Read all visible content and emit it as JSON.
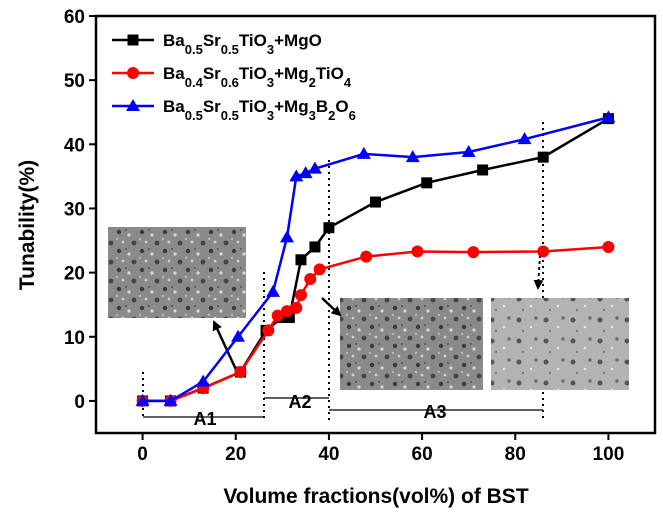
{
  "chart_data": {
    "type": "line",
    "xlabel": "Volume fractions(vol%) of BST",
    "ylabel": "Tunability(%)",
    "xlim": [
      -10,
      110
    ],
    "ylim": [
      -5,
      60
    ],
    "xticks": [
      0,
      20,
      40,
      60,
      80,
      100
    ],
    "yticks": [
      0,
      10,
      20,
      30,
      40,
      50,
      60
    ],
    "legend": "upper left",
    "annotations": [
      "A1",
      "A2",
      "A3"
    ],
    "series": [
      {
        "name": "Ba0.5Sr0.5TiO3+MgO",
        "color": "#000000",
        "marker": "square",
        "x": [
          0,
          6,
          13,
          21,
          26.5,
          30,
          31.5,
          34,
          37,
          40,
          50,
          61,
          73,
          86,
          100
        ],
        "values": [
          0,
          0,
          2,
          4.5,
          11,
          13,
          13,
          22,
          24,
          27,
          31,
          34,
          36,
          38,
          44
        ]
      },
      {
        "name": "Ba0.4Sr0.6TiO3+Mg2TiO4",
        "color": "#ff0000",
        "marker": "circle",
        "x": [
          0,
          6,
          13,
          21,
          27,
          29,
          31,
          33,
          34,
          36,
          38,
          48,
          59,
          71,
          86,
          100
        ],
        "values": [
          0,
          0,
          2,
          4.5,
          11,
          13.3,
          14,
          14.5,
          16.5,
          19,
          20.5,
          22.5,
          23.3,
          23.2,
          23.3,
          24
        ]
      },
      {
        "name": "Ba0.5Sr0.5TiO3+Mg3B2O6",
        "color": "#0000ff",
        "marker": "triangle",
        "x": [
          0,
          6,
          13,
          20.5,
          28,
          31,
          33,
          35,
          37,
          47.5,
          58,
          70,
          82,
          100
        ],
        "values": [
          0,
          0,
          3,
          10,
          17,
          25.5,
          35,
          35.5,
          36.2,
          38.5,
          38,
          38.8,
          40.8,
          44.2
        ]
      }
    ]
  }
}
